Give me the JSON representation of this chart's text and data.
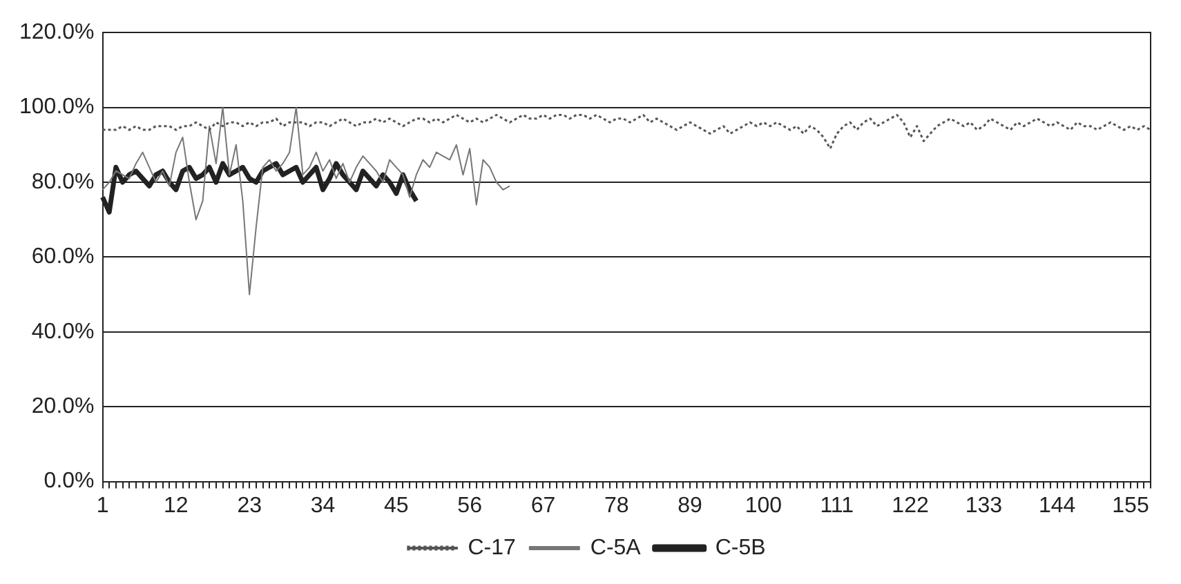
{
  "chart_data": {
    "type": "line",
    "categories": [
      "1",
      null,
      null,
      null,
      null,
      null,
      null,
      null,
      null,
      null,
      null,
      "12",
      null,
      null,
      null,
      null,
      null,
      null,
      null,
      null,
      null,
      null,
      "23",
      null,
      null,
      null,
      null,
      null,
      null,
      null,
      null,
      null,
      null,
      "34",
      null,
      null,
      null,
      null,
      null,
      null,
      null,
      null,
      null,
      null,
      "45",
      null,
      null,
      null,
      null,
      null,
      null,
      null,
      null,
      null,
      null,
      "56",
      null,
      null,
      null,
      null,
      null,
      null,
      null,
      null,
      null,
      null,
      "67",
      null,
      null,
      null,
      null,
      null,
      null,
      null,
      null,
      null,
      null,
      "78",
      null,
      null,
      null,
      null,
      null,
      null,
      null,
      null,
      null,
      null,
      "89",
      null,
      null,
      null,
      null,
      null,
      null,
      null,
      null,
      null,
      null,
      "100",
      null,
      null,
      null,
      null,
      null,
      null,
      null,
      null,
      null,
      null,
      "111",
      null,
      null,
      null,
      null,
      null,
      null,
      null,
      null,
      null,
      null,
      "122",
      null,
      null,
      null,
      null,
      null,
      null,
      null,
      null,
      null,
      null,
      "133",
      null,
      null,
      null,
      null,
      null,
      null,
      null,
      null,
      null,
      null,
      "144",
      null,
      null,
      null,
      null,
      null,
      null,
      null,
      null,
      null,
      null,
      "155",
      null,
      null,
      null
    ],
    "series": [
      {
        "name": "C-17",
        "color": "#555555",
        "line_style": "dotted",
        "values": [
          94,
          94,
          94,
          95,
          94,
          95,
          94,
          94,
          95,
          95,
          95,
          94,
          95,
          95,
          96,
          95,
          94,
          96,
          95,
          96,
          96,
          95,
          96,
          95,
          96,
          96,
          97,
          95,
          96,
          96,
          96,
          95,
          96,
          96,
          95,
          96,
          97,
          96,
          95,
          96,
          96,
          97,
          96,
          97,
          96,
          95,
          96,
          97,
          97,
          96,
          97,
          96,
          97,
          98,
          97,
          96,
          97,
          96,
          97,
          98,
          97,
          96,
          97,
          98,
          97,
          97,
          98,
          97,
          98,
          98,
          97,
          98,
          98,
          97,
          98,
          97,
          96,
          97,
          97,
          96,
          97,
          98,
          96,
          97,
          96,
          95,
          94,
          95,
          96,
          95,
          94,
          93,
          94,
          95,
          93,
          94,
          95,
          96,
          95,
          96,
          95,
          96,
          95,
          94,
          95,
          93,
          95,
          94,
          92,
          89,
          93,
          95,
          96,
          94,
          96,
          97,
          95,
          96,
          97,
          98,
          96,
          92,
          95,
          91,
          93,
          95,
          96,
          97,
          96,
          95,
          96,
          94,
          95,
          97,
          96,
          95,
          94,
          96,
          95,
          96,
          97,
          96,
          95,
          96,
          95,
          94,
          96,
          95,
          95,
          94,
          95,
          96,
          95,
          94,
          95,
          94,
          95,
          94
        ]
      },
      {
        "name": "C-5A",
        "color": "#777777",
        "line_style": "solid",
        "values": [
          78,
          80,
          83,
          82,
          81,
          85,
          88,
          84,
          80,
          83,
          79,
          88,
          92,
          80,
          70,
          75,
          95,
          85,
          100,
          82,
          90,
          75,
          50,
          68,
          84,
          86,
          83,
          85,
          88,
          100,
          82,
          84,
          88,
          83,
          86,
          81,
          85,
          80,
          84,
          87,
          85,
          83,
          80,
          86,
          84,
          82,
          76,
          82,
          86,
          84,
          88,
          87,
          86,
          90,
          82,
          89,
          74,
          86,
          84,
          80,
          78,
          79,
          null,
          null,
          null,
          null,
          null,
          null,
          null,
          null,
          null,
          null,
          null,
          null,
          null,
          null,
          null,
          null,
          null,
          null,
          null,
          null,
          null,
          null,
          null,
          null,
          null,
          null,
          null,
          null,
          null,
          null,
          null,
          null,
          null,
          null,
          null,
          null,
          null,
          null,
          null,
          null,
          null,
          null,
          null,
          null,
          null,
          null,
          null,
          null,
          null,
          null,
          null,
          null,
          null,
          null,
          null,
          null,
          null,
          null,
          null,
          null,
          null,
          null,
          null,
          null,
          null,
          null,
          null,
          null,
          null,
          null,
          null,
          null,
          null,
          null,
          null,
          null,
          null,
          null,
          null,
          null,
          null,
          null,
          null,
          null,
          null,
          null,
          null,
          null,
          null,
          null,
          null,
          null,
          null,
          null,
          null,
          null
        ]
      },
      {
        "name": "C-5B",
        "color": "#222222",
        "line_style": "solid",
        "values": [
          76,
          72,
          84,
          80,
          82,
          83,
          81,
          79,
          82,
          83,
          80,
          78,
          83,
          84,
          81,
          82,
          84,
          80,
          85,
          82,
          83,
          84,
          81,
          80,
          83,
          84,
          85,
          82,
          83,
          84,
          80,
          82,
          84,
          78,
          81,
          85,
          82,
          80,
          78,
          83,
          81,
          79,
          82,
          80,
          77,
          82,
          78,
          75,
          null,
          null,
          null,
          null,
          null,
          null,
          null,
          null,
          null,
          null,
          null,
          null,
          null,
          null,
          null,
          null,
          null,
          null,
          null,
          null,
          null,
          null,
          null,
          null,
          null,
          null,
          null,
          null,
          null,
          null,
          null,
          null,
          null,
          null,
          null,
          null,
          null,
          null,
          null,
          null,
          null,
          null,
          null,
          null,
          null,
          null,
          null,
          null,
          null,
          null,
          null,
          null,
          null,
          null,
          null,
          null,
          null,
          null,
          null,
          null,
          null,
          null,
          null,
          null,
          null,
          null,
          null,
          null,
          null,
          null,
          null,
          null,
          null,
          null,
          null,
          null,
          null,
          null,
          null,
          null,
          null,
          null,
          null,
          null,
          null,
          null,
          null,
          null,
          null,
          null,
          null,
          null,
          null,
          null,
          null,
          null,
          null,
          null,
          null,
          null,
          null,
          null,
          null,
          null,
          null,
          null,
          null,
          null,
          null,
          null
        ]
      }
    ],
    "ylim": [
      0,
      120
    ],
    "yticks": [
      {
        "value": 0,
        "label": "0.0%"
      },
      {
        "value": 20,
        "label": "20.0%"
      },
      {
        "value": 40,
        "label": "40.0%"
      },
      {
        "value": 60,
        "label": "60.0%"
      },
      {
        "value": 80,
        "label": "80.0%"
      },
      {
        "value": 100,
        "label": "100.0%"
      },
      {
        "value": 120,
        "label": "120.0%"
      }
    ],
    "grid": "y",
    "legend": "bottom",
    "marker": "none"
  }
}
